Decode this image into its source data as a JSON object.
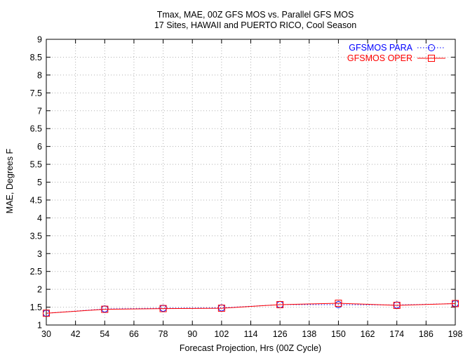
{
  "chart_data": {
    "type": "line",
    "title": "Tmax, MAE, 00Z GFS MOS vs. Parallel GFS MOS",
    "subtitle": "17 Sites, HAWAII and PUERTO RICO, Cool Season",
    "xlabel": "Forecast Projection, Hrs (00Z Cycle)",
    "ylabel": "MAE, Degrees F",
    "xlim": [
      30,
      198
    ],
    "ylim": [
      1,
      9
    ],
    "xticks": [
      30,
      42,
      54,
      66,
      78,
      90,
      102,
      114,
      126,
      138,
      150,
      162,
      174,
      186,
      198
    ],
    "yticks": [
      "1",
      "1.5",
      "2",
      "2.5",
      "3",
      "3.5",
      "4",
      "4.5",
      "5",
      "5.5",
      "6",
      "6.5",
      "7",
      "7.5",
      "8",
      "8.5",
      "9"
    ],
    "grid": true,
    "legend_position": "top-right",
    "x": [
      30,
      54,
      78,
      102,
      126,
      150,
      174,
      198
    ],
    "series": [
      {
        "name": "GFSMOS PARA",
        "color": "#0000ff",
        "line_style": "dotted",
        "marker": "circle",
        "values": [
          1.33,
          1.45,
          1.47,
          1.48,
          1.57,
          1.57,
          1.56,
          1.6
        ]
      },
      {
        "name": "GFSMOS OPER",
        "color": "#ff0000",
        "line_style": "solid",
        "marker": "square",
        "values": [
          1.33,
          1.44,
          1.46,
          1.47,
          1.57,
          1.61,
          1.55,
          1.6
        ]
      }
    ]
  }
}
